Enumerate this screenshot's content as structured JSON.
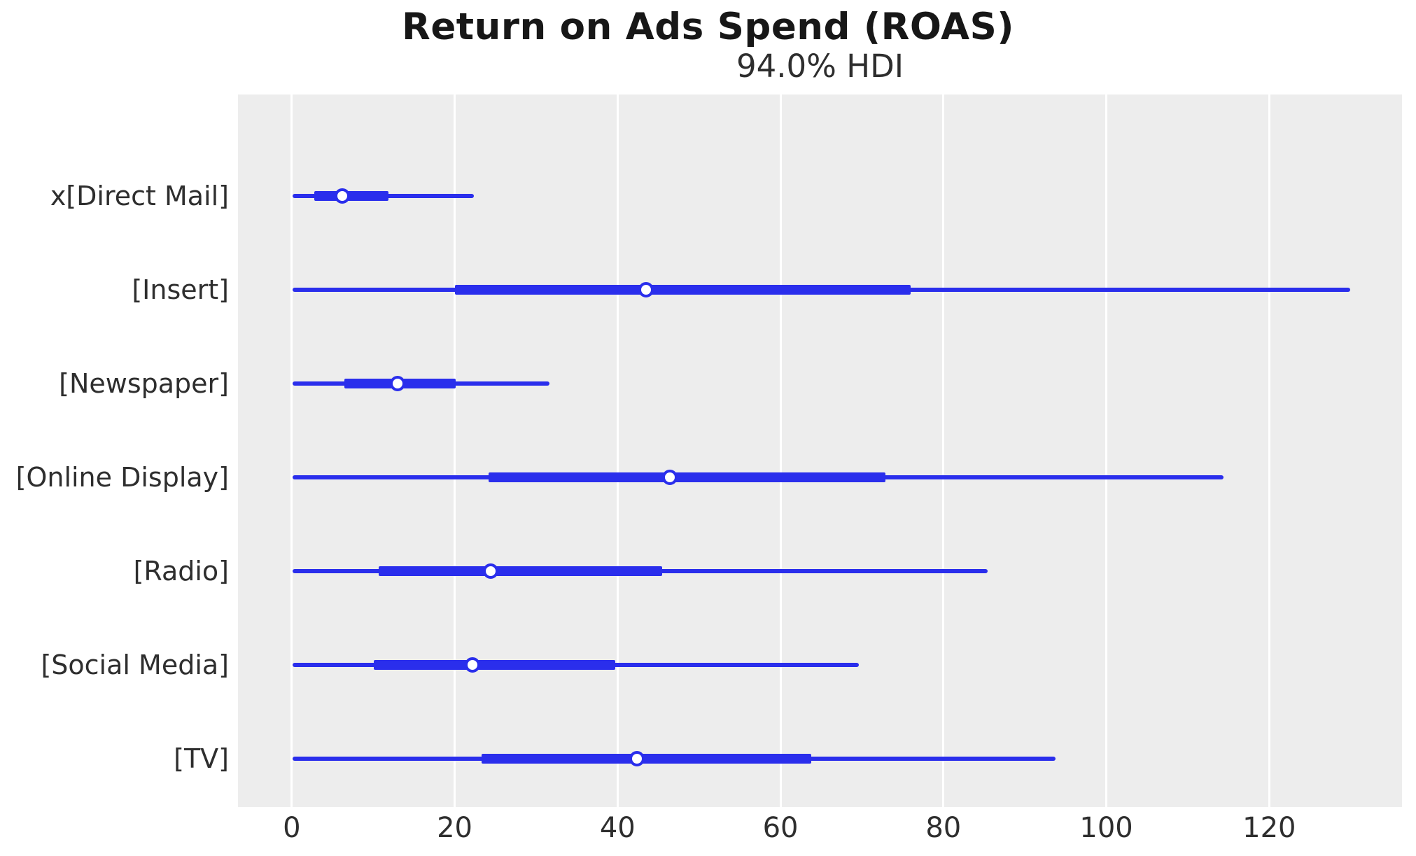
{
  "title": "Return on Ads Spend (ROAS)",
  "subtitle": "94.0% HDI",
  "colors": {
    "line": "#2a2eec",
    "marker_fill": "#ffffff",
    "plot_bg": "#ededed",
    "grid": "#ffffff",
    "tick_text": "#2e2e2e",
    "title_text": "#171717"
  },
  "chart_data": {
    "type": "forest",
    "title": "Return on Ads Spend (ROAS)",
    "subtitle": "94.0% HDI",
    "hdi_prob": "94.0%",
    "xlim": [
      -6.6,
      136.3
    ],
    "x_ticks": [
      0,
      20,
      40,
      60,
      80,
      100,
      120
    ],
    "grid": "vertical-white",
    "legend": "none",
    "series": [
      {
        "label": "x[Direct Mail]",
        "hdi_94": [
          0.1,
          22.4
        ],
        "hdi_50": [
          2.8,
          11.9
        ],
        "median": 6.2
      },
      {
        "label": "[Insert]",
        "hdi_94": [
          0.1,
          129.9
        ],
        "hdi_50": [
          20.0,
          76.0
        ],
        "median": 43.5
      },
      {
        "label": "[Newspaper]",
        "hdi_94": [
          0.1,
          31.6
        ],
        "hdi_50": [
          6.5,
          20.1
        ],
        "median": 13.0
      },
      {
        "label": "[Online Display]",
        "hdi_94": [
          0.1,
          114.4
        ],
        "hdi_50": [
          24.2,
          72.9
        ],
        "median": 46.4
      },
      {
        "label": "[Radio]",
        "hdi_94": [
          0.1,
          85.4
        ],
        "hdi_50": [
          10.7,
          45.5
        ],
        "median": 24.4
      },
      {
        "label": "[Social Media]",
        "hdi_94": [
          0.1,
          69.6
        ],
        "hdi_50": [
          10.1,
          39.7
        ],
        "median": 22.2
      },
      {
        "label": "[TV]",
        "hdi_94": [
          0.1,
          93.8
        ],
        "hdi_50": [
          23.3,
          63.8
        ],
        "median": 42.4
      }
    ]
  }
}
